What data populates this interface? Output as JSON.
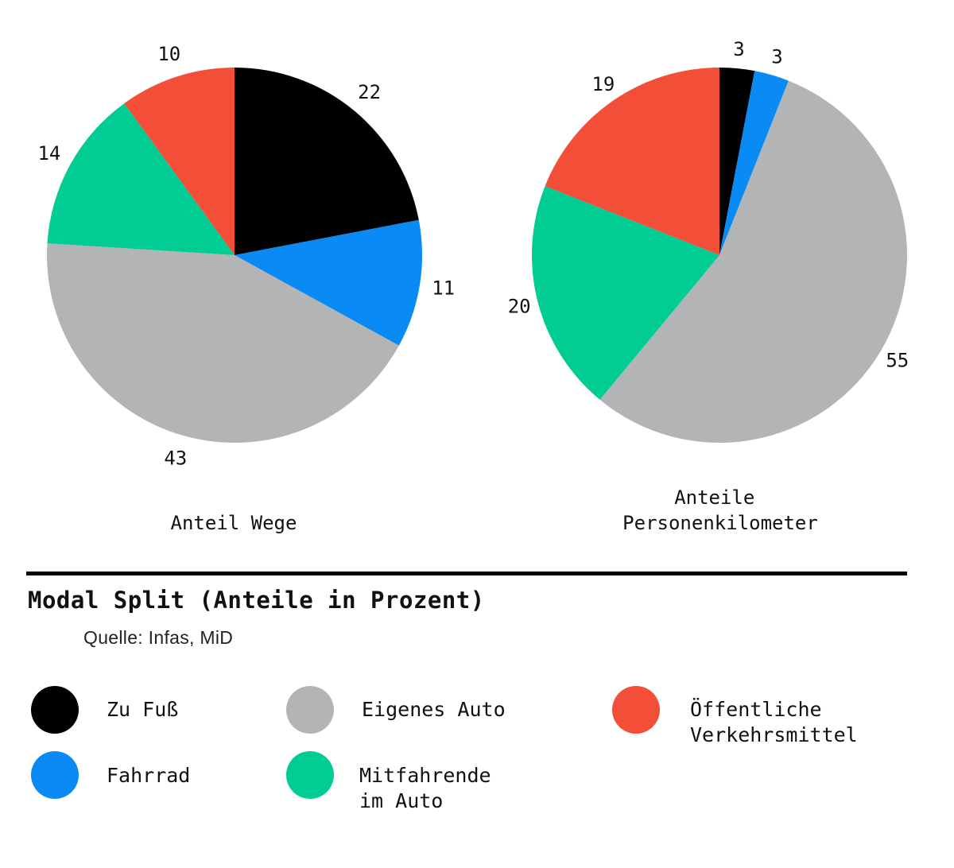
{
  "chart_data": [
    {
      "type": "pie",
      "title": "Anteil Wege",
      "categories": [
        "Zu Fuß",
        "Fahrrad",
        "Eigenes Auto",
        "Mitfahrende im Auto",
        "Öffentliche Verkehrsmittel"
      ],
      "values": [
        22,
        11,
        43,
        14,
        10
      ],
      "labels": [
        "22",
        "11",
        "43",
        "14",
        "10"
      ],
      "colors": [
        "#000000",
        "#0a8af5",
        "#b3b4b5",
        "#00cc93",
        "#f24e38"
      ]
    },
    {
      "type": "pie",
      "title": "Anteile Personenkilometer",
      "title_lines": [
        "Anteile",
        "Personenkilometer"
      ],
      "categories": [
        "Zu Fuß",
        "Fahrrad",
        "Eigenes Auto",
        "Mitfahrende im Auto",
        "Öffentliche Verkehrsmittel"
      ],
      "values": [
        3,
        3,
        55,
        20,
        19
      ],
      "labels": [
        "3",
        "3",
        "55",
        "20",
        "19"
      ],
      "colors": [
        "#000000",
        "#0a8af5",
        "#b3b4b5",
        "#00cc93",
        "#f24e38"
      ]
    }
  ],
  "heading": {
    "title": "Modal Split (Anteile in Prozent)",
    "source": "Quelle: Infas, MiD"
  },
  "legend": [
    {
      "lines": [
        "Zu Fuß"
      ],
      "color": "#000000"
    },
    {
      "lines": [
        "Eigenes Auto"
      ],
      "color": "#b3b4b5"
    },
    {
      "lines": [
        "Öffentliche",
        "Verkehrsmittel"
      ],
      "color": "#f24e38"
    },
    {
      "lines": [
        "Fahrrad"
      ],
      "color": "#0a8af5"
    },
    {
      "lines": [
        "Mitfahrende",
        "im Auto"
      ],
      "color": "#00cc93"
    }
  ]
}
